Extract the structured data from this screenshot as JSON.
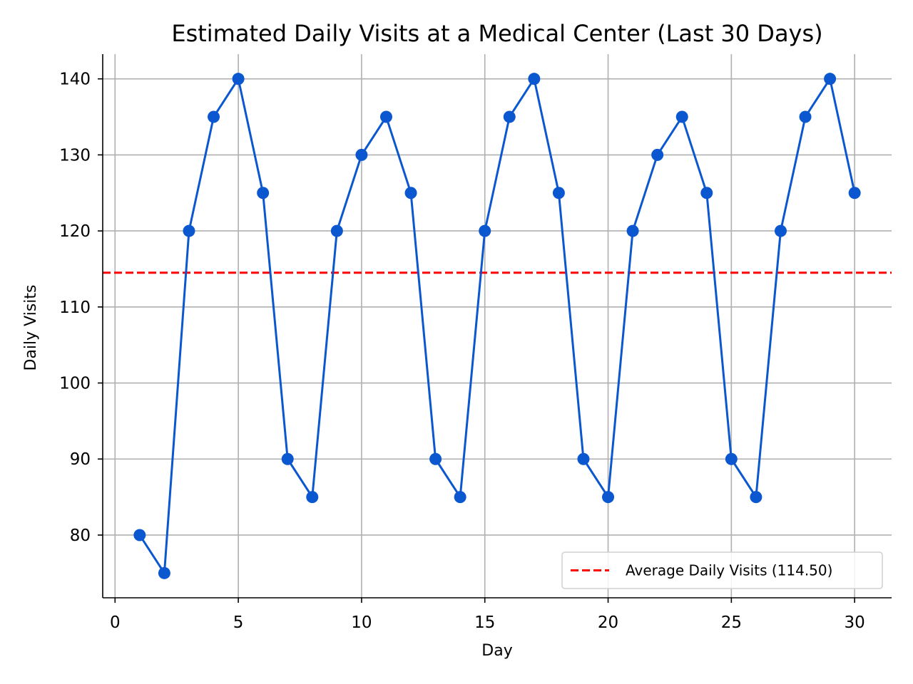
{
  "chart_data": {
    "type": "line",
    "title": "Estimated Daily Visits at a Medical Center (Last 30 Days)",
    "xlabel": "Day",
    "ylabel": "Daily Visits",
    "xlim": [
      -0.5,
      31.5
    ],
    "ylim": [
      71.75,
      143.25
    ],
    "xticks": [
      0,
      5,
      10,
      15,
      20,
      25,
      30
    ],
    "yticks": [
      80,
      90,
      100,
      110,
      120,
      130,
      140
    ],
    "xtick_labels": [
      "0",
      "5",
      "10",
      "15",
      "20",
      "25",
      "30"
    ],
    "ytick_labels": [
      "80",
      "90",
      "100",
      "110",
      "120",
      "130",
      "140"
    ],
    "grid": true,
    "x": [
      1,
      2,
      3,
      4,
      5,
      6,
      7,
      8,
      9,
      10,
      11,
      12,
      13,
      14,
      15,
      16,
      17,
      18,
      19,
      20,
      21,
      22,
      23,
      24,
      25,
      26,
      27,
      28,
      29,
      30
    ],
    "series": [
      {
        "color": "#0b57d0",
        "marker": "circle",
        "values": [
          80,
          75,
          120,
          135,
          140,
          125,
          90,
          85,
          120,
          130,
          135,
          125,
          90,
          85,
          120,
          135,
          140,
          125,
          90,
          85,
          120,
          130,
          135,
          125,
          90,
          85,
          120,
          135,
          140,
          125
        ]
      }
    ],
    "reference_lines": [
      {
        "type": "horizontal",
        "y": 114.5,
        "style": "dashed",
        "color": "#ff0000",
        "label": "Average Daily Visits (114.50)"
      }
    ],
    "legend": {
      "placement": "bottom-right",
      "entries": [
        "Average Daily Visits (114.50)"
      ]
    }
  }
}
